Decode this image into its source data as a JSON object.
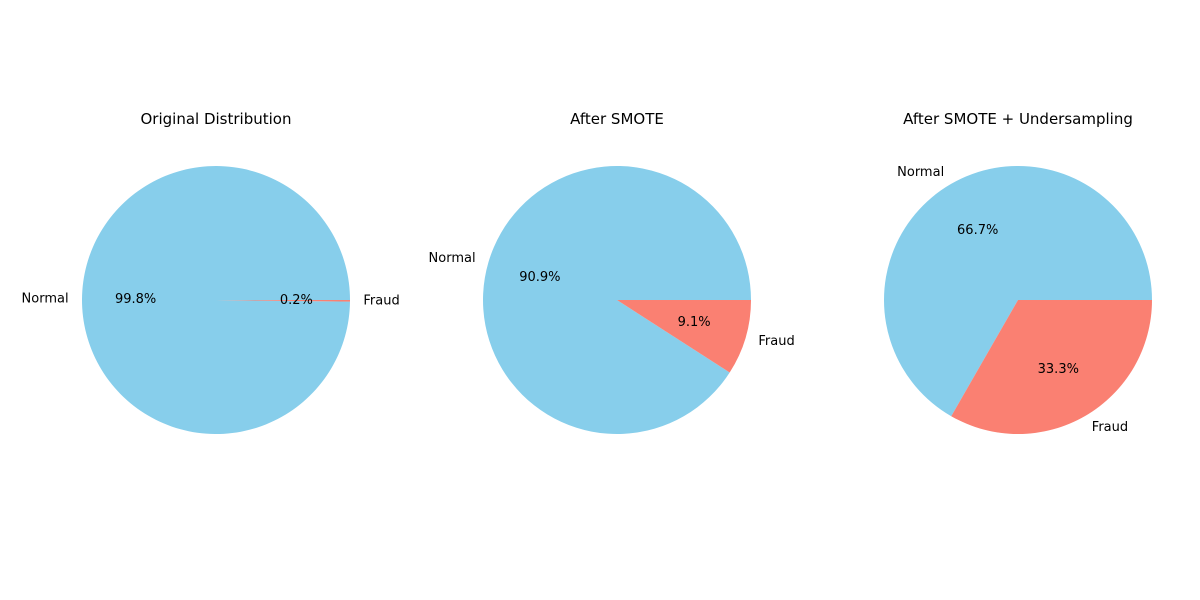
{
  "colors": {
    "Normal": "#87CEEB",
    "Fraud": "#FA8072",
    "background": "#FFFFFF"
  },
  "chart_data": [
    {
      "type": "pie",
      "title": "Original Distribution",
      "labels": [
        "Normal",
        "Fraud"
      ],
      "values": [
        99.8,
        0.2
      ],
      "pct_labels": [
        "99.8%",
        "0.2%"
      ]
    },
    {
      "type": "pie",
      "title": "After SMOTE",
      "labels": [
        "Normal",
        "Fraud"
      ],
      "values": [
        90.9,
        9.1
      ],
      "pct_labels": [
        "90.9%",
        "9.1%"
      ]
    },
    {
      "type": "pie",
      "title": "After SMOTE + Undersampling",
      "labels": [
        "Normal",
        "Fraud"
      ],
      "values": [
        66.7,
        33.3
      ],
      "pct_labels": [
        "66.7%",
        "33.3%"
      ]
    }
  ]
}
